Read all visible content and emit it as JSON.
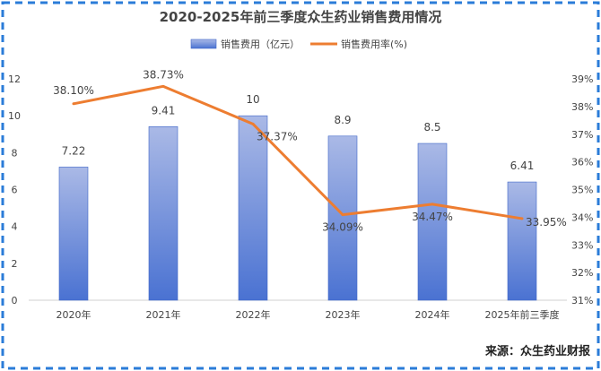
{
  "chart_data": {
    "type": "bar+line",
    "title": "2020-2025年前三季度众生药业销售费用情况",
    "categories": [
      "2020年",
      "2021年",
      "2022年",
      "2023年",
      "2024年",
      "2025年前三季度"
    ],
    "series": [
      {
        "name": "销售费用（亿元）",
        "type": "bar",
        "axis": "left",
        "values": [
          7.22,
          9.41,
          10,
          8.9,
          8.5,
          6.41
        ],
        "labels": [
          "7.22",
          "9.41",
          "10",
          "8.9",
          "8.5",
          "6.41"
        ]
      },
      {
        "name": "销售费用率(%)",
        "type": "line",
        "axis": "right",
        "values": [
          38.1,
          38.73,
          37.37,
          34.09,
          34.47,
          33.95
        ],
        "labels": [
          "38.10%",
          "38.73%",
          "37.37%",
          "34.09%",
          "34.47%",
          "33.95%"
        ]
      }
    ],
    "y_left": {
      "min": 0,
      "max": 12,
      "ticks": [
        "0",
        "2",
        "4",
        "6",
        "8",
        "10",
        "12"
      ]
    },
    "y_right": {
      "min": 31,
      "max": 39,
      "ticks": [
        "31%",
        "32%",
        "33%",
        "34%",
        "35%",
        "36%",
        "37%",
        "38%",
        "39%"
      ]
    },
    "legend_position": "top-center",
    "grid": false,
    "colors": {
      "bar_top": "#aab9e6",
      "bar_bottom": "#4a72d2",
      "bar_edge": "#3f66c8",
      "line": "#ed7d31",
      "frame_dash": "#2b7cd8",
      "title_text": "#444444",
      "axis_text": "#444444"
    }
  },
  "source_note": "来源：众生药业财报"
}
